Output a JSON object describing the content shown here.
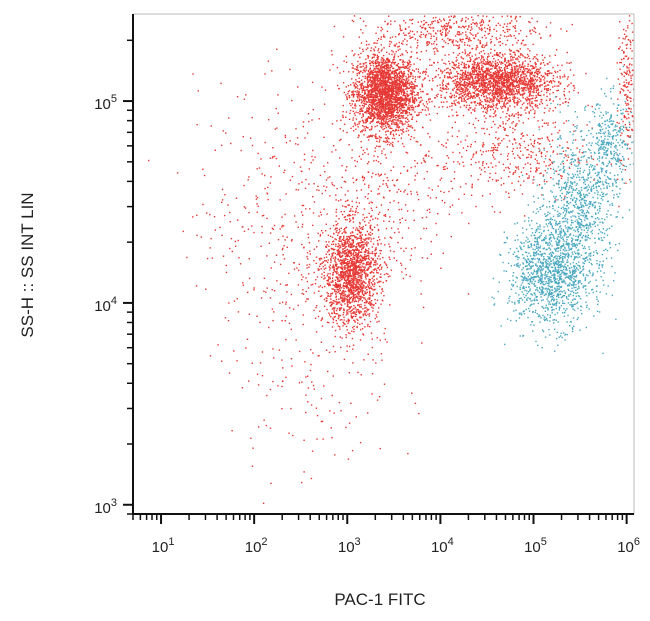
{
  "chart_data": {
    "type": "scatter",
    "title": "",
    "xlabel": "PAC-1 FITC",
    "ylabel": "SS-H :: SS INT LIN",
    "x_scale": "log",
    "y_scale": "log",
    "xlim": [
      5,
      1200000
    ],
    "ylim": [
      900,
      270000
    ],
    "x_tick_labels": [
      {
        "value": 10,
        "label": "10",
        "exp": "1"
      },
      {
        "value": 100,
        "label": "10",
        "exp": "2"
      },
      {
        "value": 1000,
        "label": "10",
        "exp": "3"
      },
      {
        "value": 10000,
        "label": "10",
        "exp": "4"
      },
      {
        "value": 100000,
        "label": "10",
        "exp": "5"
      },
      {
        "value": 1000000,
        "label": "10",
        "exp": "6"
      }
    ],
    "y_tick_labels": [
      {
        "value": 1000,
        "label": "10",
        "exp": "3"
      },
      {
        "value": 10000,
        "label": "10",
        "exp": "4"
      },
      {
        "value": 100000,
        "label": "10",
        "exp": "5"
      }
    ],
    "grid": false,
    "legend": "none",
    "series": [
      {
        "color": "#e53935",
        "clusters": [
          {
            "cx": 2500,
            "cy": 110000,
            "sx_log": 0.17,
            "sy_log": 0.1,
            "count": 2400
          },
          {
            "cx": 40000,
            "cy": 125000,
            "sx_log": 0.32,
            "sy_log": 0.07,
            "count": 2000
          },
          {
            "cx": 1100,
            "cy": 14000,
            "sx_log": 0.15,
            "sy_log": 0.13,
            "count": 1600
          },
          {
            "cx": 15000,
            "cy": 230000,
            "sx_log": 0.45,
            "sy_log": 0.06,
            "count": 500
          },
          {
            "cx": 1000000,
            "cy": 120000,
            "sx_log": 0.05,
            "sy_log": 0.2,
            "count": 180
          },
          {
            "cx": 60000,
            "cy": 55000,
            "sx_log": 0.4,
            "sy_log": 0.12,
            "count": 400
          },
          {
            "cx": 3000,
            "cy": 40000,
            "sx_log": 0.3,
            "sy_log": 0.25,
            "count": 250
          },
          {
            "cx": 300,
            "cy": 25000,
            "sx_log": 0.55,
            "sy_log": 0.35,
            "count": 500
          },
          {
            "cx": 400,
            "cy": 4000,
            "sx_log": 0.45,
            "sy_log": 0.25,
            "count": 120
          }
        ]
      },
      {
        "color": "#4aa8bf",
        "clusters": [
          {
            "cx": 150000,
            "cy": 14000,
            "sx_log": 0.22,
            "sy_log": 0.13,
            "count": 1200
          },
          {
            "cx": 300000,
            "cy": 30000,
            "sx_log": 0.2,
            "sy_log": 0.18,
            "count": 800
          },
          {
            "cx": 650000,
            "cy": 60000,
            "sx_log": 0.12,
            "sy_log": 0.12,
            "count": 300
          }
        ]
      }
    ]
  }
}
